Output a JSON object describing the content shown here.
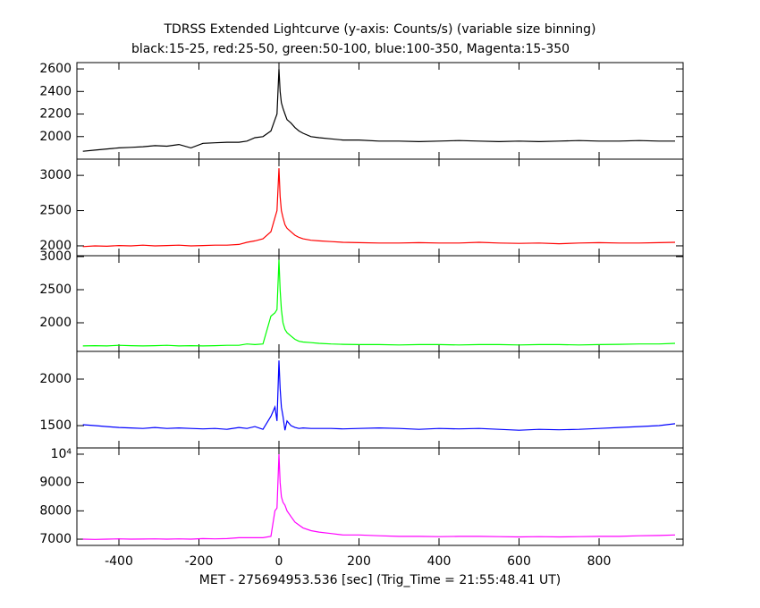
{
  "chart_data": [
    {
      "type": "line",
      "title": "TDRSS Extended Lightcurve (y-axis: Counts/s) (variable size binning)",
      "subtitle": "black:15-25, red:25-50, green:50-100, blue:100-350, Magenta:15-350",
      "color": "#000000",
      "xlim": [
        -505,
        1010
      ],
      "ylim": [
        1800,
        2656
      ],
      "yticks": [
        2000,
        2200,
        2400,
        2600
      ],
      "x": [
        -490,
        -460,
        -430,
        -400,
        -370,
        -340,
        -310,
        -280,
        -250,
        -220,
        -190,
        -160,
        -130,
        -100,
        -80,
        -60,
        -40,
        -20,
        -10,
        -5,
        0,
        3,
        6,
        10,
        15,
        20,
        30,
        40,
        50,
        60,
        80,
        100,
        130,
        160,
        200,
        250,
        300,
        350,
        400,
        450,
        500,
        550,
        600,
        650,
        700,
        750,
        800,
        850,
        900,
        950,
        990
      ],
      "values": [
        1870,
        1880,
        1890,
        1900,
        1905,
        1910,
        1920,
        1915,
        1930,
        1900,
        1940,
        1945,
        1950,
        1950,
        1960,
        1990,
        2000,
        2050,
        2150,
        2200,
        2600,
        2400,
        2300,
        2250,
        2200,
        2150,
        2120,
        2080,
        2050,
        2030,
        2000,
        1990,
        1980,
        1970,
        1970,
        1960,
        1960,
        1955,
        1960,
        1965,
        1960,
        1955,
        1960,
        1955,
        1960,
        1965,
        1960,
        1960,
        1965,
        1960,
        1960
      ]
    },
    {
      "type": "line",
      "color": "#ff0000",
      "xlim": [
        -505,
        1010
      ],
      "ylim": [
        1860,
        3230
      ],
      "yticks": [
        2000,
        2500,
        3000
      ],
      "x": [
        -490,
        -460,
        -430,
        -400,
        -370,
        -340,
        -310,
        -280,
        -250,
        -220,
        -190,
        -160,
        -130,
        -100,
        -80,
        -60,
        -40,
        -20,
        -10,
        -5,
        0,
        3,
        6,
        10,
        15,
        20,
        30,
        40,
        50,
        60,
        80,
        100,
        130,
        160,
        200,
        250,
        300,
        350,
        400,
        450,
        500,
        550,
        600,
        650,
        700,
        750,
        800,
        850,
        900,
        950,
        990
      ],
      "values": [
        1990,
        2000,
        1995,
        2005,
        2000,
        2010,
        2000,
        2005,
        2010,
        2000,
        2005,
        2010,
        2010,
        2020,
        2050,
        2070,
        2100,
        2200,
        2400,
        2500,
        3100,
        2700,
        2500,
        2400,
        2300,
        2250,
        2200,
        2150,
        2120,
        2100,
        2080,
        2070,
        2060,
        2050,
        2045,
        2040,
        2040,
        2045,
        2040,
        2040,
        2050,
        2040,
        2035,
        2040,
        2030,
        2040,
        2045,
        2040,
        2040,
        2045,
        2050
      ]
    },
    {
      "type": "line",
      "color": "#00ff00",
      "xlim": [
        -505,
        1010
      ],
      "ylim": [
        1568,
        3013
      ],
      "yticks": [
        2000,
        2500,
        3000
      ],
      "x": [
        -490,
        -460,
        -430,
        -400,
        -370,
        -340,
        -310,
        -280,
        -250,
        -220,
        -190,
        -160,
        -130,
        -100,
        -80,
        -60,
        -40,
        -20,
        -10,
        -5,
        0,
        3,
        6,
        10,
        15,
        20,
        30,
        40,
        50,
        60,
        80,
        100,
        130,
        160,
        200,
        250,
        300,
        350,
        400,
        450,
        500,
        550,
        600,
        650,
        700,
        750,
        800,
        850,
        900,
        950,
        990
      ],
      "values": [
        1650,
        1655,
        1650,
        1660,
        1655,
        1650,
        1655,
        1660,
        1650,
        1655,
        1650,
        1655,
        1660,
        1660,
        1680,
        1670,
        1680,
        2100,
        2150,
        2200,
        2950,
        2500,
        2200,
        2000,
        1900,
        1850,
        1800,
        1750,
        1720,
        1710,
        1700,
        1690,
        1680,
        1675,
        1670,
        1670,
        1665,
        1670,
        1670,
        1665,
        1670,
        1670,
        1665,
        1670,
        1670,
        1665,
        1670,
        1675,
        1680,
        1680,
        1690
      ]
    },
    {
      "type": "line",
      "color": "#0000ff",
      "xlim": [
        -505,
        1010
      ],
      "ylim": [
        1260,
        2298
      ],
      "yticks": [
        1500,
        2000
      ],
      "x": [
        -490,
        -460,
        -430,
        -400,
        -370,
        -340,
        -310,
        -280,
        -250,
        -220,
        -190,
        -160,
        -130,
        -100,
        -80,
        -60,
        -40,
        -20,
        -10,
        -5,
        0,
        3,
        6,
        10,
        15,
        20,
        30,
        40,
        50,
        60,
        80,
        100,
        130,
        160,
        200,
        250,
        300,
        350,
        400,
        450,
        500,
        550,
        600,
        650,
        700,
        750,
        800,
        850,
        900,
        950,
        990
      ],
      "values": [
        1510,
        1500,
        1490,
        1480,
        1475,
        1470,
        1480,
        1470,
        1475,
        1470,
        1465,
        1470,
        1460,
        1480,
        1470,
        1490,
        1460,
        1600,
        1700,
        1550,
        2200,
        1900,
        1700,
        1600,
        1450,
        1550,
        1500,
        1480,
        1470,
        1475,
        1470,
        1470,
        1470,
        1465,
        1470,
        1475,
        1470,
        1460,
        1470,
        1465,
        1470,
        1460,
        1450,
        1460,
        1455,
        1460,
        1470,
        1480,
        1490,
        1500,
        1520
      ]
    },
    {
      "type": "line",
      "color": "#ff00ff",
      "xlim": [
        -505,
        1010
      ],
      "ylim": [
        6780,
        10220
      ],
      "yticks": [
        7000,
        8000,
        9000,
        {
          "value": 10000,
          "label": "10⁴"
        }
      ],
      "xticks": [
        -400,
        -200,
        0,
        200,
        400,
        600,
        800
      ],
      "xlabel": "MET - 275694953.536 [sec] (Trig_Time = 21:55:48.41 UT)",
      "x": [
        -490,
        -460,
        -430,
        -400,
        -370,
        -340,
        -310,
        -280,
        -250,
        -220,
        -190,
        -160,
        -130,
        -100,
        -80,
        -60,
        -40,
        -20,
        -10,
        -5,
        0,
        3,
        6,
        10,
        15,
        20,
        30,
        40,
        50,
        60,
        80,
        100,
        130,
        160,
        200,
        250,
        300,
        350,
        400,
        450,
        500,
        550,
        600,
        650,
        700,
        750,
        800,
        850,
        900,
        950,
        990
      ],
      "values": [
        7000,
        6990,
        7000,
        7010,
        7000,
        7005,
        7010,
        7000,
        7010,
        7000,
        7020,
        7010,
        7020,
        7050,
        7050,
        7050,
        7050,
        7100,
        8000,
        8100,
        10000,
        9000,
        8500,
        8300,
        8200,
        8000,
        7800,
        7600,
        7500,
        7400,
        7300,
        7250,
        7200,
        7150,
        7150,
        7120,
        7100,
        7100,
        7090,
        7100,
        7100,
        7090,
        7080,
        7090,
        7080,
        7090,
        7100,
        7100,
        7120,
        7130,
        7150
      ]
    }
  ]
}
